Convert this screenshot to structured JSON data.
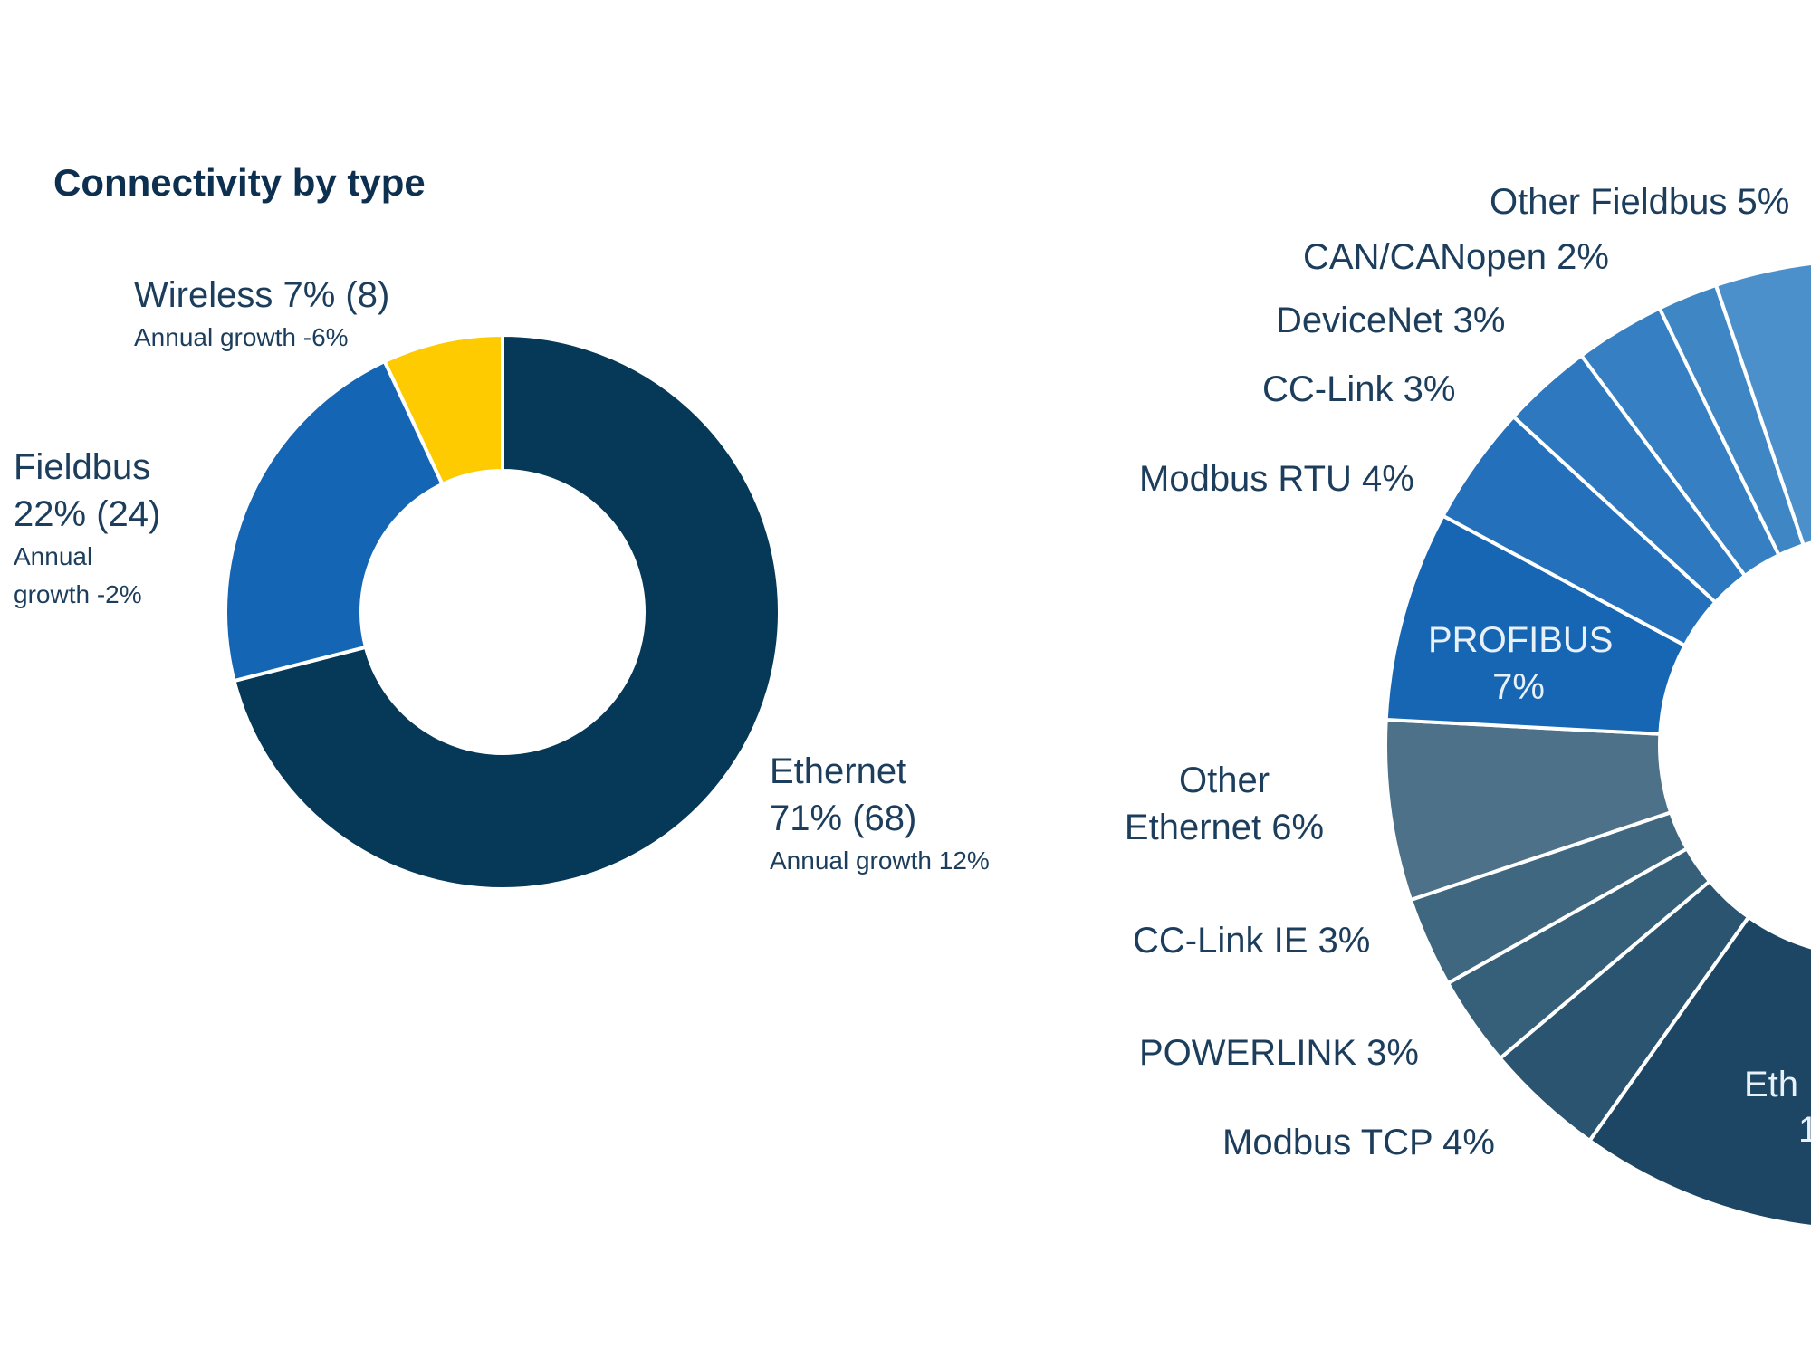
{
  "chart_data": [
    {
      "type": "donut",
      "title": "Connectivity by type",
      "categories": [
        "Ethernet",
        "Fieldbus",
        "Wireless"
      ],
      "values": [
        71,
        22,
        7
      ],
      "value_labels": [
        "71%",
        "22%",
        "7%"
      ],
      "count_labels": [
        "(68)",
        "(24)",
        "(8)"
      ],
      "growth_labels": [
        "Annual growth 12%",
        "Annual growth -2%",
        "Annual growth -6%"
      ],
      "colors": [
        "#063858",
        "#1565b5",
        "#fdcb00"
      ]
    },
    {
      "type": "donut",
      "categories": [
        "Modbus TCP",
        "POWERLINK",
        "CC-Link IE",
        "Other Ethernet",
        "PROFIBUS",
        "Modbus RTU",
        "CC-Link",
        "DeviceNet",
        "CAN/CANopen",
        "Other Fieldbus"
      ],
      "values": [
        4,
        3,
        3,
        6,
        7,
        4,
        3,
        3,
        2,
        5
      ],
      "value_labels": [
        "4%",
        "3%",
        "3%",
        "6%",
        "7%",
        "4%",
        "3%",
        "3%",
        "2%",
        "5%"
      ],
      "colors": [
        "#2b5471",
        "#365f79",
        "#3f6780",
        "#4d7189",
        "#1766b4",
        "#2470bb",
        "#2d78be",
        "#357fc2",
        "#3f86c5",
        "#4b8fcb"
      ],
      "partial_labels": [
        "Eth",
        "1"
      ]
    }
  ]
}
